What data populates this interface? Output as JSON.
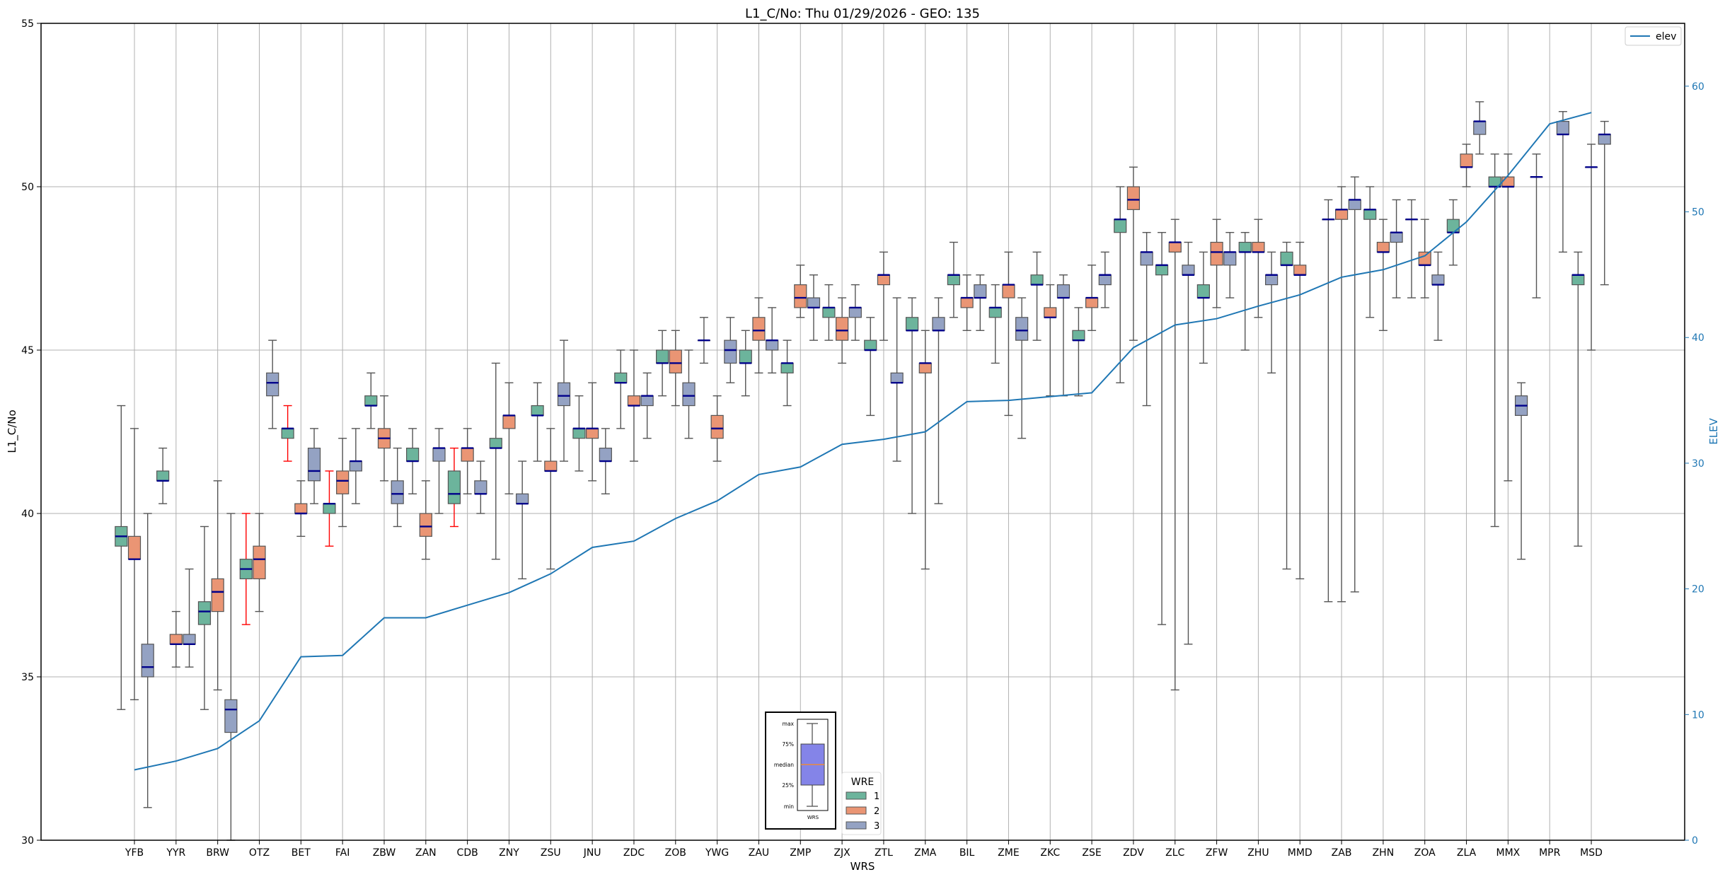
{
  "chart_data": {
    "type": "box",
    "title": "L1_C/No: Thu 01/29/2026 - GEO: 135",
    "xlabel": "WRS",
    "ylabel": "L1_C/No",
    "ylabel_right": "ELEV",
    "ylim": [
      30,
      55
    ],
    "ylim_right": [
      0,
      65
    ],
    "yticks": [
      30,
      35,
      40,
      45,
      50,
      55
    ],
    "yticks_right": [
      0,
      10,
      20,
      30,
      40,
      50,
      60
    ],
    "grid": true,
    "legend_line": {
      "label": "elev",
      "placement": "top-right"
    },
    "legend_groups": {
      "title": "WRE",
      "entries": [
        "1",
        "2",
        "3"
      ]
    },
    "colors": {
      "1": "#6cb49c",
      "2": "#ea9574",
      "3": "#94a2c3",
      "median": "#00008b",
      "elev": "#1f77b4",
      "whisker": "#555555",
      "whisker_flag": "#ff0000"
    },
    "box_format": "[min, q1, median, q3, max]",
    "inset_legend": {
      "labels": [
        "max",
        "75%",
        "median",
        "25%",
        "min"
      ],
      "xlabel": "WRS",
      "box_color": "#8484e8",
      "median_color": "#ff8c1a"
    },
    "flagged_whiskers": [
      [
        "OTZ",
        "1"
      ],
      [
        "BET",
        "1"
      ],
      [
        "FAI",
        "1"
      ],
      [
        "CDB",
        "1"
      ]
    ],
    "categories": [
      {
        "name": "YFB",
        "elev": 5.6,
        "boxes": {
          "1": [
            34.0,
            39.0,
            39.3,
            39.6,
            43.3
          ],
          "2": [
            34.3,
            38.6,
            38.6,
            39.3,
            42.6
          ],
          "3": [
            31.0,
            35.0,
            35.3,
            36.0,
            40.0
          ]
        }
      },
      {
        "name": "YYR",
        "elev": 6.3,
        "boxes": {
          "1": [
            40.3,
            41.0,
            41.0,
            41.3,
            42.0
          ],
          "2": [
            35.3,
            36.0,
            36.0,
            36.3,
            37.0
          ],
          "3": [
            35.3,
            36.0,
            36.0,
            36.3,
            38.3
          ]
        }
      },
      {
        "name": "BRW",
        "elev": 7.3,
        "boxes": {
          "1": [
            34.0,
            36.6,
            37.0,
            37.3,
            39.6
          ],
          "2": [
            34.6,
            37.0,
            37.6,
            38.0,
            41.0
          ],
          "3": [
            30.0,
            33.3,
            34.0,
            34.3,
            40.0
          ]
        }
      },
      {
        "name": "OTZ",
        "elev": 9.5,
        "boxes": {
          "1": [
            36.6,
            38.0,
            38.3,
            38.6,
            40.0
          ],
          "2": [
            37.0,
            38.0,
            38.6,
            39.0,
            40.0
          ],
          "3": [
            42.6,
            43.6,
            44.0,
            44.3,
            45.3
          ]
        }
      },
      {
        "name": "BET",
        "elev": 14.6,
        "boxes": {
          "1": [
            41.6,
            42.3,
            42.6,
            42.6,
            43.3
          ],
          "2": [
            39.3,
            40.0,
            40.0,
            40.3,
            41.0
          ],
          "3": [
            40.3,
            41.0,
            41.3,
            42.0,
            42.6
          ]
        }
      },
      {
        "name": "FAI",
        "elev": 14.7,
        "boxes": {
          "1": [
            39.0,
            40.0,
            40.3,
            40.3,
            41.3
          ],
          "2": [
            39.6,
            40.6,
            41.0,
            41.3,
            42.3
          ],
          "3": [
            40.3,
            41.3,
            41.6,
            41.6,
            42.6
          ]
        }
      },
      {
        "name": "ZBW",
        "elev": 17.7,
        "boxes": {
          "1": [
            42.6,
            43.3,
            43.3,
            43.6,
            44.3
          ],
          "2": [
            41.0,
            42.0,
            42.3,
            42.6,
            43.6
          ],
          "3": [
            39.6,
            40.3,
            40.6,
            41.0,
            42.0
          ]
        }
      },
      {
        "name": "ZAN",
        "elev": 17.7,
        "boxes": {
          "1": [
            40.6,
            41.6,
            41.6,
            42.0,
            42.6
          ],
          "2": [
            38.6,
            39.3,
            39.6,
            40.0,
            41.0
          ],
          "3": [
            40.0,
            41.6,
            42.0,
            42.0,
            42.6
          ]
        }
      },
      {
        "name": "CDB",
        "elev": 18.7,
        "boxes": {
          "1": [
            39.6,
            40.3,
            40.6,
            41.3,
            42.0
          ],
          "2": [
            40.6,
            41.6,
            42.0,
            42.0,
            42.6
          ],
          "3": [
            40.0,
            40.6,
            40.6,
            41.0,
            41.6
          ]
        }
      },
      {
        "name": "ZNY",
        "elev": 19.7,
        "boxes": {
          "1": [
            38.6,
            42.0,
            42.0,
            42.3,
            44.6
          ],
          "2": [
            40.6,
            42.6,
            43.0,
            43.0,
            44.0
          ],
          "3": [
            38.0,
            40.3,
            40.3,
            40.6,
            41.6
          ]
        }
      },
      {
        "name": "ZSU",
        "elev": 21.2,
        "boxes": {
          "1": [
            41.6,
            43.0,
            43.0,
            43.3,
            44.0
          ],
          "2": [
            38.3,
            41.3,
            41.3,
            41.6,
            42.6
          ],
          "3": [
            41.6,
            43.3,
            43.6,
            44.0,
            45.3
          ]
        }
      },
      {
        "name": "JNU",
        "elev": 23.3,
        "boxes": {
          "1": [
            41.3,
            42.3,
            42.6,
            42.6,
            43.6
          ],
          "2": [
            41.0,
            42.3,
            42.6,
            42.6,
            44.0
          ],
          "3": [
            40.6,
            41.6,
            41.6,
            42.0,
            42.6
          ]
        }
      },
      {
        "name": "ZDC",
        "elev": 23.8,
        "boxes": {
          "1": [
            42.6,
            44.0,
            44.0,
            44.3,
            45.0
          ],
          "2": [
            41.6,
            43.3,
            43.3,
            43.6,
            45.0
          ],
          "3": [
            42.3,
            43.3,
            43.6,
            43.6,
            44.3
          ]
        }
      },
      {
        "name": "ZOB",
        "elev": 25.6,
        "boxes": {
          "1": [
            43.6,
            44.6,
            44.6,
            45.0,
            45.6
          ],
          "2": [
            43.3,
            44.3,
            44.6,
            45.0,
            45.6
          ],
          "3": [
            42.3,
            43.3,
            43.6,
            44.0,
            45.0
          ]
        }
      },
      {
        "name": "YWG",
        "elev": 27.0,
        "boxes": {
          "1": [
            44.6,
            45.3,
            45.3,
            45.3,
            46.0
          ],
          "2": [
            41.6,
            42.3,
            42.6,
            43.0,
            43.6
          ],
          "3": [
            44.0,
            44.6,
            45.0,
            45.3,
            46.0
          ]
        }
      },
      {
        "name": "ZAU",
        "elev": 29.1,
        "boxes": {
          "1": [
            43.6,
            44.6,
            44.6,
            45.0,
            45.6
          ],
          "2": [
            44.3,
            45.3,
            45.6,
            46.0,
            46.6
          ],
          "3": [
            44.3,
            45.0,
            45.3,
            45.3,
            46.3
          ]
        }
      },
      {
        "name": "ZMP",
        "elev": 29.7,
        "boxes": {
          "1": [
            43.3,
            44.3,
            44.6,
            44.6,
            45.3
          ],
          "2": [
            46.0,
            46.3,
            46.6,
            47.0,
            47.6
          ],
          "3": [
            45.3,
            46.3,
            46.3,
            46.6,
            47.3
          ]
        }
      },
      {
        "name": "ZJX",
        "elev": 31.5,
        "boxes": {
          "1": [
            45.3,
            46.0,
            46.3,
            46.3,
            47.0
          ],
          "2": [
            44.6,
            45.3,
            45.6,
            46.0,
            46.6
          ],
          "3": [
            45.3,
            46.0,
            46.3,
            46.3,
            47.0
          ]
        }
      },
      {
        "name": "ZTL",
        "elev": 31.9,
        "boxes": {
          "1": [
            43.0,
            45.0,
            45.0,
            45.3,
            46.0
          ],
          "2": [
            45.3,
            47.0,
            47.3,
            47.3,
            48.0
          ],
          "3": [
            41.6,
            44.0,
            44.0,
            44.3,
            46.6
          ]
        }
      },
      {
        "name": "ZMA",
        "elev": 32.5,
        "boxes": {
          "1": [
            40.0,
            45.6,
            45.6,
            46.0,
            46.6
          ],
          "2": [
            38.3,
            44.3,
            44.6,
            44.6,
            45.6
          ],
          "3": [
            40.3,
            45.6,
            45.6,
            46.0,
            46.6
          ]
        }
      },
      {
        "name": "BIL",
        "elev": 34.9,
        "boxes": {
          "1": [
            46.0,
            47.0,
            47.3,
            47.3,
            48.3
          ],
          "2": [
            45.6,
            46.3,
            46.6,
            46.6,
            47.3
          ],
          "3": [
            45.6,
            46.6,
            46.6,
            47.0,
            47.3
          ]
        }
      },
      {
        "name": "ZME",
        "elev": 35.0,
        "boxes": {
          "1": [
            44.6,
            46.0,
            46.3,
            46.3,
            47.0
          ],
          "2": [
            43.0,
            46.6,
            47.0,
            47.0,
            48.0
          ],
          "3": [
            42.3,
            45.3,
            45.6,
            46.0,
            46.6
          ]
        }
      },
      {
        "name": "ZKC",
        "elev": 35.3,
        "boxes": {
          "1": [
            45.3,
            47.0,
            47.0,
            47.3,
            48.0
          ],
          "2": [
            43.6,
            46.0,
            46.0,
            46.3,
            47.0
          ],
          "3": [
            43.6,
            46.6,
            46.6,
            47.0,
            47.3
          ]
        }
      },
      {
        "name": "ZSE",
        "elev": 35.6,
        "boxes": {
          "1": [
            43.6,
            45.3,
            45.3,
            45.6,
            46.3
          ],
          "2": [
            45.6,
            46.3,
            46.6,
            46.6,
            47.6
          ],
          "3": [
            46.3,
            47.0,
            47.3,
            47.3,
            48.0
          ]
        }
      },
      {
        "name": "ZDV",
        "elev": 39.2,
        "boxes": {
          "1": [
            44.0,
            48.6,
            49.0,
            49.0,
            50.0
          ],
          "2": [
            45.3,
            49.3,
            49.6,
            50.0,
            50.6
          ],
          "3": [
            43.3,
            47.6,
            48.0,
            48.0,
            48.6
          ]
        }
      },
      {
        "name": "ZLC",
        "elev": 41.0,
        "boxes": {
          "1": [
            36.6,
            47.3,
            47.6,
            47.6,
            48.6
          ],
          "2": [
            34.6,
            48.0,
            48.3,
            48.3,
            49.0
          ],
          "3": [
            36.0,
            47.3,
            47.3,
            47.6,
            48.3
          ]
        }
      },
      {
        "name": "ZFW",
        "elev": 41.5,
        "boxes": {
          "1": [
            44.6,
            46.6,
            46.6,
            47.0,
            48.0
          ],
          "2": [
            46.3,
            47.6,
            48.0,
            48.3,
            49.0
          ],
          "3": [
            46.6,
            47.6,
            48.0,
            48.0,
            48.6
          ]
        }
      },
      {
        "name": "ZHU",
        "elev": 42.5,
        "boxes": {
          "1": [
            45.0,
            48.0,
            48.0,
            48.3,
            48.6
          ],
          "2": [
            46.0,
            48.0,
            48.0,
            48.3,
            49.0
          ],
          "3": [
            44.3,
            47.0,
            47.3,
            47.3,
            48.0
          ]
        }
      },
      {
        "name": "MMD",
        "elev": 43.4,
        "boxes": {
          "1": [
            38.3,
            47.6,
            47.6,
            48.0,
            48.3
          ],
          "2": [
            38.0,
            47.3,
            47.3,
            47.6,
            48.3
          ]
        }
      },
      {
        "name": "ZAB",
        "elev": 44.8,
        "boxes": {
          "1": [
            37.3,
            49.0,
            49.0,
            49.0,
            49.6
          ],
          "2": [
            37.3,
            49.0,
            49.3,
            49.3,
            50.0
          ],
          "3": [
            37.6,
            49.3,
            49.6,
            49.6,
            50.3
          ]
        }
      },
      {
        "name": "ZHN",
        "elev": 45.4,
        "boxes": {
          "1": [
            46.0,
            49.0,
            49.3,
            49.3,
            50.0
          ],
          "2": [
            45.6,
            48.0,
            48.0,
            48.3,
            49.0
          ],
          "3": [
            46.6,
            48.3,
            48.6,
            48.6,
            49.6
          ]
        }
      },
      {
        "name": "ZOA",
        "elev": 46.5,
        "boxes": {
          "1": [
            46.6,
            49.0,
            49.0,
            49.0,
            49.6
          ],
          "2": [
            46.6,
            47.6,
            47.6,
            48.0,
            49.0
          ],
          "3": [
            45.3,
            47.0,
            47.0,
            47.3,
            48.0
          ]
        }
      },
      {
        "name": "ZLA",
        "elev": 49.2,
        "boxes": {
          "1": [
            47.6,
            48.6,
            48.6,
            49.0,
            49.6
          ],
          "2": [
            50.0,
            50.6,
            50.6,
            51.0,
            51.3
          ],
          "3": [
            51.0,
            51.6,
            52.0,
            52.0,
            52.6
          ]
        }
      },
      {
        "name": "MMX",
        "elev": 52.9,
        "boxes": {
          "1": [
            39.6,
            50.0,
            50.0,
            50.3,
            51.0
          ],
          "2": [
            41.0,
            50.0,
            50.0,
            50.3,
            51.0
          ],
          "3": [
            38.6,
            43.0,
            43.3,
            43.6,
            44.0
          ]
        }
      },
      {
        "name": "MPR",
        "elev": 57.0,
        "boxes": {
          "1": [
            46.6,
            50.3,
            50.3,
            50.3,
            51.0
          ],
          "3": [
            48.0,
            51.6,
            51.6,
            52.0,
            52.3
          ]
        }
      },
      {
        "name": "MSD",
        "elev": 57.9,
        "boxes": {
          "1": [
            39.0,
            47.0,
            47.3,
            47.3,
            48.0
          ],
          "2": [
            45.0,
            50.6,
            50.6,
            50.6,
            51.3
          ],
          "3": [
            47.0,
            51.3,
            51.6,
            51.6,
            52.0
          ]
        }
      }
    ]
  }
}
